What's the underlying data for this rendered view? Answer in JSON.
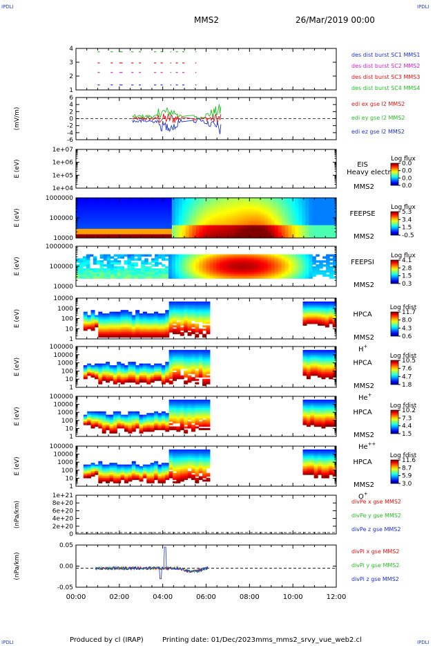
{
  "header": {
    "corner_label": "IPDLI",
    "title": "MMS2",
    "datetime": "26/Mar/2019 00:00"
  },
  "footer": {
    "produced_by": "Produced by cl (IRAP)",
    "printing_date": "Printing date: 01/Dec/2023",
    "filename": "mms_mms2_srvy_vue_web2.cl"
  },
  "colors": {
    "red": "#e01010",
    "green": "#22bb22",
    "blue": "#1a2fd0",
    "magenta": "#d020d0"
  },
  "chart_data": {
    "type": "multi-panel time series / spectrogram",
    "time_axis": {
      "range": [
        "00:00",
        "12:00"
      ],
      "tick_labels": [
        "00:00",
        "02:00",
        "04:00",
        "06:00",
        "08:00",
        "10:00",
        "12:00"
      ]
    },
    "panels": [
      {
        "kind": "burst",
        "yticks": [
          "4",
          "3",
          "2",
          "1"
        ],
        "legend": [
          {
            "label": "des dist burst SC1 MMS1",
            "color": "#1a2fd0"
          },
          {
            "label": "des dist burst SC2 MMS2",
            "color": "#d020d0"
          },
          {
            "label": "des dist burst SC3 MMS3",
            "color": "#e01010"
          },
          {
            "label": "des dist burst SC4 MMS4",
            "color": "#22bb22"
          }
        ]
      },
      {
        "kind": "line",
        "ylabel": "(mV/m)",
        "yticks": [
          "6",
          "4",
          "2",
          "0",
          "-2",
          "-4",
          "-6"
        ],
        "legend": [
          {
            "label": "edi ex gse l2 MMS2",
            "color": "#e01010"
          },
          {
            "label": "edi ey gse l2 MMS2",
            "color": "#22bb22"
          },
          {
            "label": "edi ez gse l2 MMS2",
            "color": "#1a2fd0"
          }
        ]
      },
      {
        "kind": "empty_spec",
        "ylabel": "E (eV)",
        "yticks": [
          "1e+07",
          "1e+06",
          "1e+05",
          "1e+04"
        ],
        "name": "EIS",
        "name2": "Heavy electron",
        "name3": "MMS2",
        "cbar_title": "Log flux",
        "cbar_ticks": [
          "0.0",
          "0.0",
          "0.0",
          "0.0"
        ]
      },
      {
        "kind": "feepse",
        "ylabel": "E (eV)",
        "yticks": [
          "1000000",
          "100000",
          "10000"
        ],
        "name": "FEEPSE",
        "name3": "MMS2",
        "cbar_title": "Log flux",
        "cbar_ticks": [
          "5.3",
          "3.4",
          "1.5",
          "-0.5"
        ]
      },
      {
        "kind": "feepsi",
        "ylabel": "E (eV)",
        "yticks": [
          "1000000",
          "100000",
          "10000"
        ],
        "name": "FEEPSI",
        "name3": "MMS2",
        "cbar_title": "Log flux",
        "cbar_ticks": [
          "4.1",
          "2.8",
          "1.5",
          "0.3"
        ]
      },
      {
        "kind": "hpca",
        "ylabel": "E (eV)",
        "yticks": [
          "10000",
          "1000",
          "100",
          "10",
          "1"
        ],
        "name": "HPCA",
        "name3": "MMS2",
        "species": "H",
        "species_sup": "+",
        "cbar_title": "Log fdist",
        "cbar_ticks": [
          "11.7",
          "8.0",
          "4.3",
          "0.6"
        ]
      },
      {
        "kind": "hpca",
        "ylabel": "E (eV)",
        "yticks": [
          "100000",
          "10000",
          "1000",
          "100",
          "10",
          "1"
        ],
        "name": "HPCA",
        "name3": "MMS2",
        "species": "He",
        "species_sup": "+",
        "cbar_title": "Log fdist",
        "cbar_ticks": [
          "10.5",
          "7.6",
          "4.7",
          "1.8"
        ]
      },
      {
        "kind": "hpca",
        "ylabel": "E (eV)",
        "yticks": [
          "100000",
          "10000",
          "1000",
          "100",
          "10",
          "1"
        ],
        "name": "HPCA",
        "name3": "MMS2",
        "species": "He",
        "species_sup": "++",
        "cbar_title": "Log fdist",
        "cbar_ticks": [
          "10.2",
          "7.3",
          "4.4",
          "1.5"
        ]
      },
      {
        "kind": "hpca",
        "ylabel": "E (eV)",
        "yticks": [
          "100000",
          "10000",
          "1000",
          "100",
          "10",
          "1"
        ],
        "name": "HPCA",
        "name3": "MMS2",
        "species": "O",
        "species_sup": "+",
        "cbar_title": "Log fdist",
        "cbar_ticks": [
          "11.6",
          "8.7",
          "5.9",
          "3.0"
        ]
      },
      {
        "kind": "empty_line",
        "ylabel": "(nPa/km)",
        "yticks": [
          "1e+21",
          "8e+20",
          "6e+20",
          "4e+20",
          "2e+20",
          "0"
        ],
        "legend": [
          {
            "label": "divPe x gse MMS2",
            "color": "#e01010"
          },
          {
            "label": "divPe y gse MMS2",
            "color": "#22bb22"
          },
          {
            "label": "divPe z gse MMS2",
            "color": "#1a2fd0"
          }
        ]
      },
      {
        "kind": "line",
        "ylabel": "(nPa/km)",
        "yticks": [
          "0.05",
          "0.00",
          "-0.05"
        ],
        "legend": [
          {
            "label": "divPi x gse MMS2",
            "color": "#e01010"
          },
          {
            "label": "divPi y gse MMS2",
            "color": "#22bb22"
          },
          {
            "label": "divPi z gse MMS2",
            "color": "#1a2fd0"
          }
        ]
      }
    ]
  }
}
